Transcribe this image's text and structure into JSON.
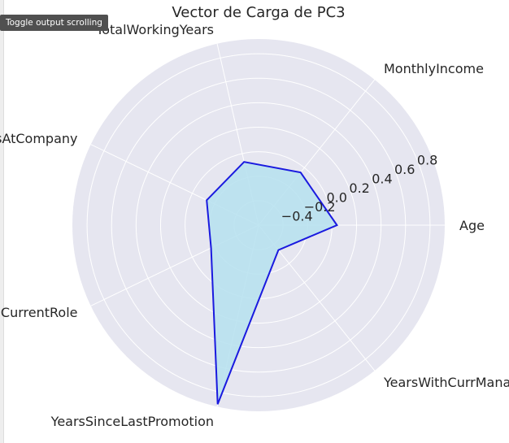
{
  "tooltip": {
    "label": "Toggle output scrolling"
  },
  "colors": {
    "plot_background": "#e6e6f0",
    "grid": "#ffffff",
    "line": "#1a1adf",
    "fill": "#b5e0ee"
  },
  "chart_data": {
    "type": "radar",
    "title": "Vector de Carga de PC3",
    "categories": [
      "Age",
      "MonthlyIncome",
      "TotalWorkingYears",
      "YearsAtCompany",
      "YearsInCurrentRole",
      "YearsSinceLastPromotion",
      "YearsWithCurrManager"
    ],
    "values": [
      0.04,
      -0.05,
      -0.07,
      -0.13,
      -0.17,
      0.9,
      -0.34
    ],
    "rlim": [
      -0.6,
      0.92
    ],
    "rticks": [
      -0.4,
      -0.2,
      0.0,
      0.2,
      0.4,
      0.6,
      0.8
    ],
    "rtick_labels": [
      "−0.4",
      "−0.2",
      "0.0",
      "0.2",
      "0.4",
      "0.6",
      "0.8"
    ],
    "grid": true,
    "filled": true
  }
}
